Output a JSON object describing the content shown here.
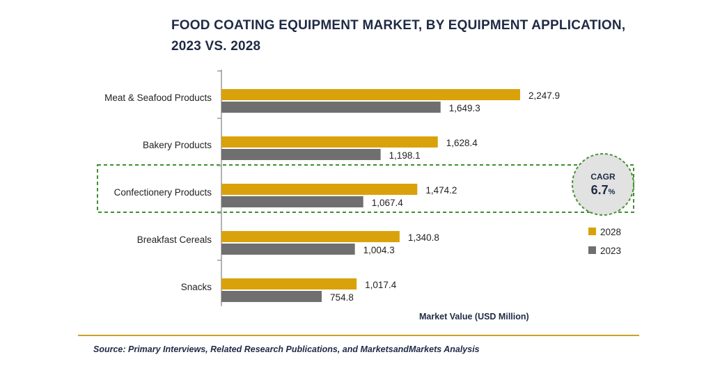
{
  "title": {
    "line1": "FOOD COATING EQUIPMENT MARKET, BY EQUIPMENT APPLICATION,",
    "line2": "2023 VS. 2028"
  },
  "source": "Source: Primary Interviews, Related Research Publications, and MarketsandMarkets Analysis",
  "colors": {
    "series_2028": "#d9a20b",
    "series_2023": "#6f6f6f",
    "highlight_border": "#3d8f2e",
    "badge_fill": "#e2e2e2",
    "badge_border": "#4a8f3a"
  },
  "cagr_badge": {
    "label": "CAGR",
    "value": "6.7",
    "unit": "%"
  },
  "chart_data": {
    "type": "bar",
    "orientation": "horizontal",
    "categories": [
      "Meat & Seafood Products",
      "Bakery Products",
      "Confectionery Products",
      "Breakfast Cereals",
      "Snacks"
    ],
    "series": [
      {
        "name": "2028",
        "values": [
          2247.9,
          1628.4,
          1474.2,
          1340.8,
          1017.4
        ],
        "labels": [
          "2,247.9",
          "1,628.4",
          "1,474.2",
          "1,340.8",
          "1,017.4"
        ]
      },
      {
        "name": "2023",
        "values": [
          1649.3,
          1198.1,
          1067.4,
          1004.3,
          754.8
        ],
        "labels": [
          "1,649.3",
          "1,198.1",
          "1,067.4",
          "1,004.3",
          "754.8"
        ]
      }
    ],
    "xlabel": "Market Value (USD Million)",
    "highlighted_category": "Confectionery Products",
    "legend_position": "right",
    "grid": false
  }
}
